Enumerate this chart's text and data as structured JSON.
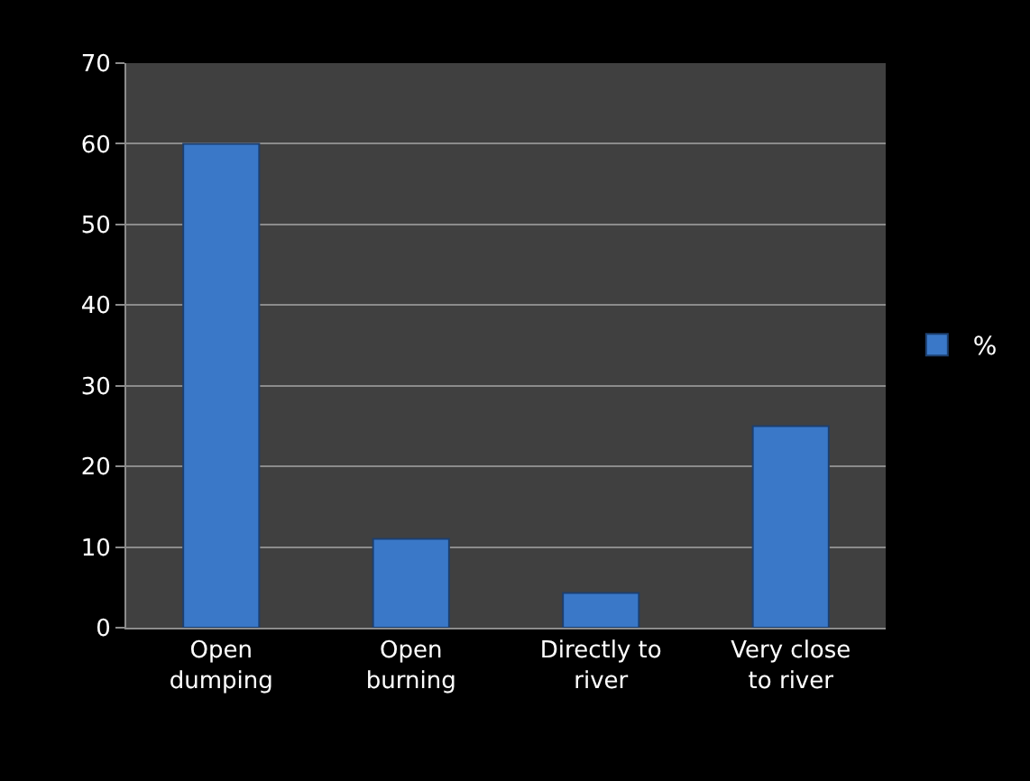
{
  "chart_data": {
    "type": "bar",
    "categories": [
      "Open dumping",
      "Open burning",
      "Directly to river",
      "Very close to river"
    ],
    "series": [
      {
        "name": "%",
        "color": "#3a78c8",
        "values": [
          60,
          11,
          4.3,
          25
        ]
      }
    ],
    "ylim": [
      0,
      70
    ],
    "yticks": [
      0,
      10,
      20,
      30,
      40,
      50,
      60,
      70
    ],
    "grid": "y",
    "legend": "right"
  }
}
